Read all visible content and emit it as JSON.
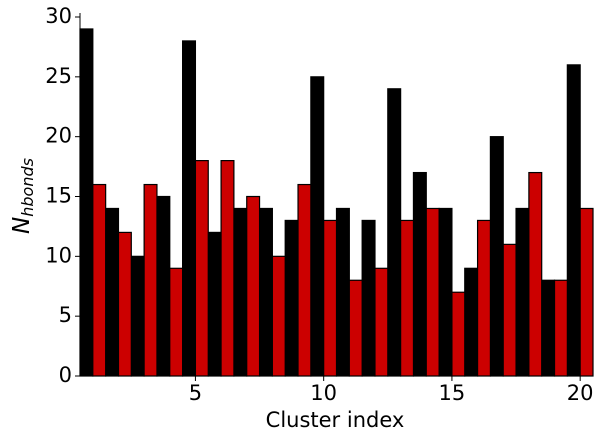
{
  "chart_data": {
    "type": "bar",
    "x_label": "Cluster index",
    "y_label_base": "N",
    "y_label_subscript": "hbonds",
    "x": [
      1,
      2,
      3,
      4,
      5,
      6,
      7,
      8,
      9,
      10,
      11,
      12,
      13,
      14,
      15,
      16,
      17,
      18,
      19,
      20
    ],
    "series": [
      {
        "color": "#000000",
        "values": [
          29,
          14,
          10,
          15,
          28,
          12,
          14,
          14,
          13,
          25,
          14,
          13,
          24,
          17,
          14,
          9,
          20,
          14,
          8,
          26
        ]
      },
      {
        "color": "#cc0000",
        "values": [
          16,
          12,
          16,
          9,
          18,
          18,
          15,
          10,
          16,
          13,
          8,
          9,
          13,
          14,
          7,
          13,
          11,
          17,
          8,
          14
        ]
      }
    ],
    "xlim": [
      0.5,
      20.5
    ],
    "xticks": [
      5,
      10,
      15,
      20
    ],
    "ylim": [
      0,
      30
    ],
    "yticks": [
      0,
      5,
      10,
      15,
      20,
      25,
      30
    ]
  }
}
